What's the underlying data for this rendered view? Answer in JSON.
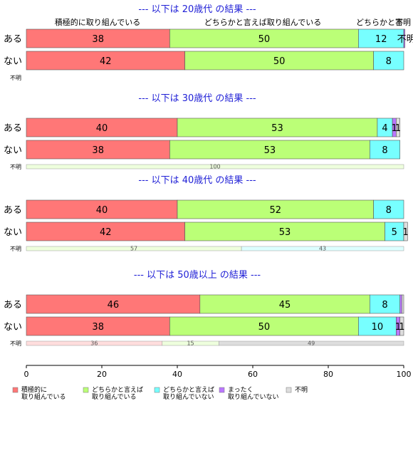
{
  "chart_data": {
    "type": "bar",
    "orientation": "horizontal",
    "stacked": true,
    "xlim": [
      0,
      100
    ],
    "xticks": [
      0,
      20,
      40,
      60,
      80,
      100
    ],
    "category_headers": [
      "積極的に取り組んでいる",
      "どちらかと言えば取り組んでいる",
      "どちらかと言",
      "不明"
    ],
    "legend": {
      "placement": "bottom",
      "items": [
        {
          "lines": [
            "積極的に",
            "取り組んでいる"
          ],
          "color": "#ff7777"
        },
        {
          "lines": [
            "どちらかと言えば",
            "取り組んでいる"
          ],
          "color": "#bbff77"
        },
        {
          "lines": [
            "どちらかと言えば",
            "取り組んでいない"
          ],
          "color": "#77ffff"
        },
        {
          "lines": [
            "まったく",
            "取り組んでいない"
          ],
          "color": "#bb77ff"
        },
        {
          "lines": [
            "不明"
          ],
          "color": "#dddddd"
        }
      ]
    },
    "panels": [
      {
        "title": "--- 以下は 20歳代 の結果 ---",
        "rows": [
          {
            "label": "ある",
            "values": [
              38,
              50,
              12,
              0.3,
              0
            ],
            "labels": [
              "38",
              "50",
              "12",
              "",
              "不明"
            ]
          },
          {
            "label": "ない",
            "values": [
              42,
              50,
              8,
              0,
              0
            ],
            "labels": [
              "42",
              "50",
              "8",
              "",
              ""
            ]
          }
        ],
        "unknown_row": {
          "label": "不明",
          "values": [],
          "labels": []
        }
      },
      {
        "title": "--- 以下は 30歳代 の結果 ---",
        "rows": [
          {
            "label": "ある",
            "values": [
              40,
              53,
              4,
              1,
              1
            ],
            "labels": [
              "40",
              "53",
              "4",
              "1",
              "1"
            ]
          },
          {
            "label": "ない",
            "values": [
              38,
              53,
              8,
              0,
              0
            ],
            "labels": [
              "38",
              "53",
              "8",
              "",
              ""
            ]
          }
        ],
        "unknown_row": {
          "label": "不明",
          "values": [
            0,
            100,
            0,
            0,
            0
          ],
          "labels": [
            "",
            "100",
            "",
            "",
            ""
          ]
        }
      },
      {
        "title": "--- 以下は 40歳代 の結果 ---",
        "rows": [
          {
            "label": "ある",
            "values": [
              40,
              52,
              8,
              0,
              0
            ],
            "labels": [
              "40",
              "52",
              "8",
              "",
              ""
            ]
          },
          {
            "label": "ない",
            "values": [
              42,
              53,
              5,
              0,
              1
            ],
            "labels": [
              "42",
              "53",
              "5",
              "",
              "1"
            ]
          }
        ],
        "unknown_row": {
          "label": "不明",
          "values": [
            0,
            57,
            43,
            0,
            0
          ],
          "labels": [
            "",
            "57",
            "43",
            "",
            ""
          ]
        }
      },
      {
        "title": "--- 以下は 50歳以上 の結果 ---",
        "rows": [
          {
            "label": "ある",
            "values": [
              46,
              45,
              8,
              0.5,
              0.5
            ],
            "labels": [
              "46",
              "45",
              "8",
              "",
              ""
            ]
          },
          {
            "label": "ない",
            "values": [
              38,
              50,
              10,
              1,
              1
            ],
            "labels": [
              "38",
              "50",
              "10",
              "1",
              "1"
            ]
          }
        ],
        "unknown_row": {
          "label": "不明",
          "values": [
            36,
            15,
            0,
            0,
            49
          ],
          "labels": [
            "36",
            "15",
            "",
            "",
            "49"
          ]
        }
      }
    ]
  }
}
